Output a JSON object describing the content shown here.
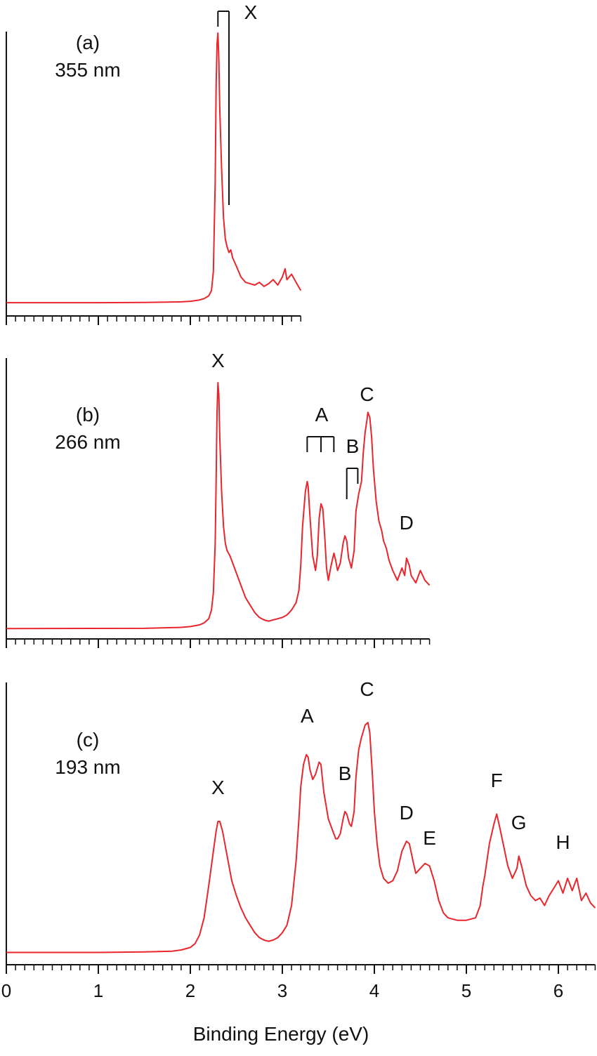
{
  "figure": {
    "xlabel": "Binding Energy (eV)",
    "x_tick_labels": [
      "0",
      "1",
      "2",
      "3",
      "4",
      "5",
      "6"
    ]
  },
  "colors": {
    "trace": "#e8262b",
    "axis": "#111111",
    "text": "#111111"
  },
  "chart_data": [
    {
      "type": "line",
      "panel_label": "(a)",
      "wavelength": "355 nm",
      "xlim": [
        0,
        3.2
      ],
      "ylim": [
        0,
        1
      ],
      "x_ticks": [
        0,
        1,
        2,
        3
      ],
      "grid": false,
      "series": [
        {
          "points": [
            [
              0,
              0.005
            ],
            [
              1.0,
              0.005
            ],
            [
              1.5,
              0.006
            ],
            [
              1.9,
              0.008
            ],
            [
              2.0,
              0.01
            ],
            [
              2.1,
              0.015
            ],
            [
              2.15,
              0.02
            ],
            [
              2.2,
              0.03
            ],
            [
              2.23,
              0.05
            ],
            [
              2.25,
              0.12
            ],
            [
              2.27,
              0.45
            ],
            [
              2.28,
              0.8
            ],
            [
              2.29,
              0.96
            ],
            [
              2.3,
              1.0
            ],
            [
              2.31,
              0.9
            ],
            [
              2.32,
              0.72
            ],
            [
              2.34,
              0.5
            ],
            [
              2.36,
              0.32
            ],
            [
              2.38,
              0.24
            ],
            [
              2.4,
              0.21
            ],
            [
              2.42,
              0.19
            ],
            [
              2.44,
              0.2
            ],
            [
              2.46,
              0.17
            ],
            [
              2.5,
              0.14
            ],
            [
              2.55,
              0.1
            ],
            [
              2.6,
              0.08
            ],
            [
              2.65,
              0.075
            ],
            [
              2.7,
              0.07
            ],
            [
              2.75,
              0.08
            ],
            [
              2.8,
              0.065
            ],
            [
              2.85,
              0.075
            ],
            [
              2.9,
              0.09
            ],
            [
              2.95,
              0.07
            ],
            [
              3.0,
              0.1
            ],
            [
              3.03,
              0.13
            ],
            [
              3.05,
              0.09
            ],
            [
              3.1,
              0.11
            ],
            [
              3.15,
              0.08
            ],
            [
              3.2,
              0.05
            ]
          ]
        }
      ],
      "annotations": [
        {
          "label": "X",
          "bracket_lines": [
            2.3,
            2.42
          ]
        }
      ]
    },
    {
      "type": "line",
      "panel_label": "(b)",
      "wavelength": "266 nm",
      "xlim": [
        0,
        4.6
      ],
      "ylim": [
        0,
        1
      ],
      "x_ticks": [
        0,
        1,
        2,
        3,
        4
      ],
      "grid": false,
      "series": [
        {
          "points": [
            [
              0,
              0.005
            ],
            [
              1.5,
              0.006
            ],
            [
              1.9,
              0.01
            ],
            [
              2.0,
              0.013
            ],
            [
              2.1,
              0.02
            ],
            [
              2.15,
              0.028
            ],
            [
              2.2,
              0.045
            ],
            [
              2.23,
              0.08
            ],
            [
              2.25,
              0.15
            ],
            [
              2.27,
              0.35
            ],
            [
              2.28,
              0.6
            ],
            [
              2.29,
              0.88
            ],
            [
              2.3,
              1.0
            ],
            [
              2.31,
              0.95
            ],
            [
              2.32,
              0.78
            ],
            [
              2.34,
              0.56
            ],
            [
              2.36,
              0.42
            ],
            [
              2.38,
              0.35
            ],
            [
              2.4,
              0.32
            ],
            [
              2.43,
              0.3
            ],
            [
              2.46,
              0.27
            ],
            [
              2.5,
              0.23
            ],
            [
              2.55,
              0.18
            ],
            [
              2.6,
              0.13
            ],
            [
              2.65,
              0.1
            ],
            [
              2.7,
              0.07
            ],
            [
              2.75,
              0.05
            ],
            [
              2.8,
              0.04
            ],
            [
              2.85,
              0.035
            ],
            [
              2.9,
              0.04
            ],
            [
              2.95,
              0.045
            ],
            [
              3.0,
              0.05
            ],
            [
              3.05,
              0.06
            ],
            [
              3.1,
              0.08
            ],
            [
              3.15,
              0.11
            ],
            [
              3.18,
              0.16
            ],
            [
              3.2,
              0.26
            ],
            [
              3.22,
              0.42
            ],
            [
              3.25,
              0.56
            ],
            [
              3.27,
              0.6
            ],
            [
              3.28,
              0.58
            ],
            [
              3.3,
              0.46
            ],
            [
              3.33,
              0.3
            ],
            [
              3.36,
              0.24
            ],
            [
              3.38,
              0.3
            ],
            [
              3.4,
              0.45
            ],
            [
              3.42,
              0.51
            ],
            [
              3.44,
              0.49
            ],
            [
              3.46,
              0.38
            ],
            [
              3.48,
              0.25
            ],
            [
              3.5,
              0.2
            ],
            [
              3.53,
              0.26
            ],
            [
              3.56,
              0.31
            ],
            [
              3.58,
              0.28
            ],
            [
              3.6,
              0.24
            ],
            [
              3.63,
              0.27
            ],
            [
              3.66,
              0.35
            ],
            [
              3.68,
              0.38
            ],
            [
              3.7,
              0.36
            ],
            [
              3.72,
              0.29
            ],
            [
              3.75,
              0.25
            ],
            [
              3.78,
              0.32
            ],
            [
              3.8,
              0.48
            ],
            [
              3.83,
              0.55
            ],
            [
              3.86,
              0.6
            ],
            [
              3.88,
              0.72
            ],
            [
              3.9,
              0.8
            ],
            [
              3.92,
              0.85
            ],
            [
              3.93,
              0.88
            ],
            [
              3.95,
              0.86
            ],
            [
              3.97,
              0.78
            ],
            [
              3.99,
              0.65
            ],
            [
              4.02,
              0.52
            ],
            [
              4.05,
              0.44
            ],
            [
              4.08,
              0.4
            ],
            [
              4.1,
              0.36
            ],
            [
              4.13,
              0.33
            ],
            [
              4.16,
              0.28
            ],
            [
              4.2,
              0.24
            ],
            [
              4.25,
              0.2
            ],
            [
              4.3,
              0.25
            ],
            [
              4.33,
              0.22
            ],
            [
              4.35,
              0.29
            ],
            [
              4.38,
              0.26
            ],
            [
              4.4,
              0.22
            ],
            [
              4.45,
              0.19
            ],
            [
              4.5,
              0.24
            ],
            [
              4.55,
              0.2
            ],
            [
              4.6,
              0.18
            ]
          ]
        }
      ],
      "annotations": [
        {
          "label": "X",
          "x": 2.3
        },
        {
          "label": "A",
          "bracket_lines": [
            3.27,
            3.42,
            3.56
          ]
        },
        {
          "label": "B",
          "bracket_lines": [
            3.7,
            3.82
          ]
        },
        {
          "label": "C",
          "x": 3.92
        },
        {
          "label": "D",
          "x": 4.35
        }
      ]
    },
    {
      "type": "line",
      "panel_label": "(c)",
      "wavelength": "193 nm",
      "xlim": [
        0,
        6.4
      ],
      "ylim": [
        0,
        1
      ],
      "x_ticks": [
        0,
        1,
        2,
        3,
        4,
        5,
        6
      ],
      "grid": false,
      "series": [
        {
          "points": [
            [
              0,
              0.01
            ],
            [
              1.0,
              0.01
            ],
            [
              1.5,
              0.012
            ],
            [
              1.8,
              0.015
            ],
            [
              1.9,
              0.02
            ],
            [
              2.0,
              0.03
            ],
            [
              2.05,
              0.045
            ],
            [
              2.1,
              0.08
            ],
            [
              2.15,
              0.15
            ],
            [
              2.2,
              0.28
            ],
            [
              2.25,
              0.42
            ],
            [
              2.28,
              0.5
            ],
            [
              2.3,
              0.54
            ],
            [
              2.32,
              0.54
            ],
            [
              2.35,
              0.5
            ],
            [
              2.4,
              0.4
            ],
            [
              2.45,
              0.3
            ],
            [
              2.5,
              0.24
            ],
            [
              2.55,
              0.19
            ],
            [
              2.6,
              0.15
            ],
            [
              2.65,
              0.12
            ],
            [
              2.7,
              0.09
            ],
            [
              2.75,
              0.07
            ],
            [
              2.8,
              0.06
            ],
            [
              2.85,
              0.055
            ],
            [
              2.9,
              0.06
            ],
            [
              2.95,
              0.07
            ],
            [
              3.0,
              0.09
            ],
            [
              3.05,
              0.12
            ],
            [
              3.1,
              0.2
            ],
            [
              3.15,
              0.38
            ],
            [
              3.18,
              0.55
            ],
            [
              3.2,
              0.68
            ],
            [
              3.23,
              0.77
            ],
            [
              3.26,
              0.81
            ],
            [
              3.28,
              0.8
            ],
            [
              3.3,
              0.75
            ],
            [
              3.33,
              0.71
            ],
            [
              3.36,
              0.73
            ],
            [
              3.4,
              0.78
            ],
            [
              3.42,
              0.77
            ],
            [
              3.45,
              0.66
            ],
            [
              3.5,
              0.55
            ],
            [
              3.55,
              0.5
            ],
            [
              3.58,
              0.47
            ],
            [
              3.6,
              0.47
            ],
            [
              3.63,
              0.49
            ],
            [
              3.66,
              0.55
            ],
            [
              3.68,
              0.58
            ],
            [
              3.7,
              0.57
            ],
            [
              3.73,
              0.53
            ],
            [
              3.75,
              0.52
            ],
            [
              3.78,
              0.58
            ],
            [
              3.8,
              0.72
            ],
            [
              3.83,
              0.83
            ],
            [
              3.86,
              0.88
            ],
            [
              3.9,
              0.93
            ],
            [
              3.93,
              0.94
            ],
            [
              3.95,
              0.9
            ],
            [
              3.98,
              0.72
            ],
            [
              4.0,
              0.58
            ],
            [
              4.03,
              0.45
            ],
            [
              4.06,
              0.36
            ],
            [
              4.1,
              0.31
            ],
            [
              4.15,
              0.29
            ],
            [
              4.2,
              0.3
            ],
            [
              4.25,
              0.34
            ],
            [
              4.3,
              0.42
            ],
            [
              4.35,
              0.46
            ],
            [
              4.38,
              0.45
            ],
            [
              4.42,
              0.38
            ],
            [
              4.45,
              0.33
            ],
            [
              4.5,
              0.35
            ],
            [
              4.55,
              0.37
            ],
            [
              4.6,
              0.36
            ],
            [
              4.65,
              0.3
            ],
            [
              4.7,
              0.22
            ],
            [
              4.75,
              0.17
            ],
            [
              4.8,
              0.15
            ],
            [
              4.9,
              0.14
            ],
            [
              5.0,
              0.14
            ],
            [
              5.1,
              0.15
            ],
            [
              5.15,
              0.2
            ],
            [
              5.18,
              0.28
            ],
            [
              5.2,
              0.32
            ],
            [
              5.25,
              0.45
            ],
            [
              5.3,
              0.53
            ],
            [
              5.33,
              0.57
            ],
            [
              5.36,
              0.52
            ],
            [
              5.4,
              0.45
            ],
            [
              5.45,
              0.36
            ],
            [
              5.5,
              0.31
            ],
            [
              5.55,
              0.35
            ],
            [
              5.57,
              0.4
            ],
            [
              5.6,
              0.36
            ],
            [
              5.65,
              0.28
            ],
            [
              5.7,
              0.24
            ],
            [
              5.75,
              0.22
            ],
            [
              5.8,
              0.23
            ],
            [
              5.85,
              0.2
            ],
            [
              5.9,
              0.24
            ],
            [
              5.95,
              0.27
            ],
            [
              6.0,
              0.3
            ],
            [
              6.05,
              0.25
            ],
            [
              6.1,
              0.31
            ],
            [
              6.15,
              0.26
            ],
            [
              6.2,
              0.31
            ],
            [
              6.25,
              0.22
            ],
            [
              6.3,
              0.25
            ],
            [
              6.35,
              0.21
            ],
            [
              6.4,
              0.19
            ]
          ]
        }
      ],
      "annotations": [
        {
          "label": "X",
          "x": 2.3
        },
        {
          "label": "A",
          "x": 3.27
        },
        {
          "label": "B",
          "x": 3.68
        },
        {
          "label": "C",
          "x": 3.92
        },
        {
          "label": "D",
          "x": 4.35
        },
        {
          "label": "E",
          "x": 4.6
        },
        {
          "label": "F",
          "x": 5.33
        },
        {
          "label": "G",
          "x": 5.57
        },
        {
          "label": "H",
          "x": 6.05
        }
      ]
    }
  ]
}
